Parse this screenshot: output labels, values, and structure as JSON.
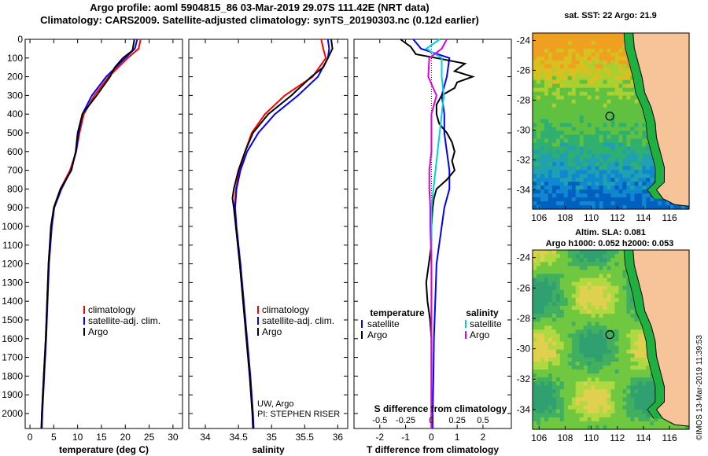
{
  "header": {
    "title_line1": "Argo profile: aoml 5904815_86 03-Mar-2019 29.07S 111.42E (NRT data)",
    "title_line2": "Climatology: CARS2009. Satellite-adjusted climatology: synTS_20190303.nc (0.12d earlier)"
  },
  "maps": {
    "sst_title": "sat. SST: 22 Argo: 21.9",
    "sla_title_1": "Altim. SLA: 0.081",
    "sla_title_2": "Argo h1000: 0.052 h2000: 0.053",
    "lon_ticks": [
      "106",
      "108",
      "110",
      "112",
      "114",
      "116"
    ],
    "lat_ticks": [
      "-24",
      "-26",
      "-28",
      "-30",
      "-32",
      "-34"
    ],
    "land_color": "#f7c499",
    "float_lon": 111.42,
    "float_lat": -29.07
  },
  "stamp": "©IMOS 13-Mar-2019 11:39:53",
  "chart_data": [
    {
      "type": "line",
      "xlabel": "temperature (deg C)",
      "ylabel": "",
      "xlim": [
        -1,
        32
      ],
      "ylim": [
        2080,
        0
      ],
      "x_ticks": [
        0,
        5,
        10,
        15,
        20,
        25,
        30
      ],
      "y_ticks": [
        0,
        100,
        200,
        300,
        400,
        500,
        600,
        700,
        800,
        900,
        1000,
        1100,
        1200,
        1300,
        1400,
        1500,
        1600,
        1700,
        1800,
        1900,
        2000
      ],
      "legend": [
        "climatology",
        "satellite-adj. clim.",
        "Argo"
      ],
      "series": [
        {
          "name": "climatology",
          "color": "#ff0000",
          "depth": [
            0,
            50,
            100,
            200,
            300,
            400,
            500,
            600,
            700,
            800,
            900,
            1000,
            1200,
            1400,
            1600,
            1800,
            2000,
            2080
          ],
          "values": [
            23.2,
            22.8,
            20.5,
            16.5,
            13.5,
            11.3,
            10.4,
            9.7,
            8.4,
            6.4,
            5.0,
            4.5,
            3.9,
            3.6,
            3.3,
            2.9,
            2.5,
            2.4
          ]
        },
        {
          "name": "satellite-adj. clim.",
          "color": "#0000ff",
          "depth": [
            0,
            50,
            100,
            200,
            300,
            400,
            500,
            600,
            700,
            800,
            900,
            1000,
            1200,
            1400,
            1600,
            1800,
            2000,
            2080
          ],
          "values": [
            22.5,
            22.0,
            20.0,
            16.0,
            13.0,
            11.0,
            10.2,
            9.7,
            8.6,
            6.6,
            5.1,
            4.6,
            4.0,
            3.7,
            3.4,
            3.0,
            2.6,
            2.5
          ]
        },
        {
          "name": "Argo",
          "color": "#000000",
          "depth": [
            0,
            60,
            100,
            150,
            200,
            300,
            400,
            500,
            600,
            700,
            800,
            900,
            1000,
            1200,
            1400,
            1600,
            1800,
            2000,
            2080
          ],
          "values": [
            21.9,
            21.5,
            19.5,
            17.8,
            16.8,
            14.0,
            11.0,
            10.0,
            9.6,
            8.7,
            6.4,
            5.0,
            4.4,
            3.9,
            3.6,
            3.3,
            2.9,
            2.5,
            2.4
          ]
        }
      ]
    },
    {
      "type": "line",
      "xlabel": "salinity",
      "ylabel": "",
      "xlim": [
        33.75,
        36.15
      ],
      "ylim": [
        2080,
        0
      ],
      "x_ticks": [
        34,
        34.5,
        35,
        35.5,
        36
      ],
      "legend": [
        "climatology",
        "satellite-adj. clim.",
        "Argo"
      ],
      "annotation_1": "UW, Argo",
      "annotation_2": "PI: STEPHEN RISER",
      "series": [
        {
          "name": "climatology",
          "color": "#ff0000",
          "depth": [
            0,
            50,
            100,
            200,
            300,
            400,
            500,
            600,
            700,
            800,
            900,
            1000,
            1200,
            1400,
            1600,
            1800,
            2000,
            2080
          ],
          "values": [
            35.75,
            35.78,
            35.82,
            35.62,
            35.2,
            34.9,
            34.7,
            34.6,
            34.52,
            34.46,
            34.44,
            34.46,
            34.52,
            34.57,
            34.62,
            34.67,
            34.71,
            34.72
          ]
        },
        {
          "name": "satellite-adj. clim.",
          "color": "#0000ff",
          "depth": [
            0,
            50,
            100,
            200,
            300,
            400,
            500,
            600,
            700,
            800,
            900,
            1000,
            1200,
            1400,
            1600,
            1800,
            2000,
            2080
          ],
          "values": [
            35.85,
            35.87,
            35.85,
            35.7,
            35.4,
            35.05,
            34.8,
            34.63,
            34.53,
            34.47,
            34.45,
            34.47,
            34.53,
            34.58,
            34.63,
            34.68,
            34.72,
            34.73
          ]
        },
        {
          "name": "Argo",
          "color": "#000000",
          "depth": [
            0,
            50,
            100,
            150,
            200,
            300,
            400,
            500,
            600,
            700,
            800,
            850,
            900,
            1000,
            1200,
            1400,
            1600,
            1800,
            2000,
            2080
          ],
          "values": [
            35.9,
            35.92,
            35.85,
            35.78,
            35.6,
            35.3,
            34.95,
            34.72,
            34.6,
            34.5,
            34.43,
            34.41,
            34.43,
            34.46,
            34.52,
            34.57,
            34.62,
            34.67,
            34.71,
            34.72
          ]
        }
      ]
    },
    {
      "type": "line",
      "xlabel": "T difference from climatology",
      "x2label": "S difference from climatology",
      "ylabel": "",
      "xlim": [
        -3,
        3.1
      ],
      "ylim": [
        2080,
        0
      ],
      "x_ticks": [
        -2,
        -1,
        0,
        1,
        2
      ],
      "x2_ticks": [
        "-0.5",
        "-0.25",
        "0",
        "0.25",
        "0.5"
      ],
      "legend_left_title": "temperature",
      "legend_right_title": "salinity",
      "legend_left": [
        "satellite",
        "Argo"
      ],
      "legend_right": [
        "satellite",
        "Argo"
      ],
      "series": [
        {
          "name": "satellite",
          "variable": "temperature",
          "color": "#0000ff",
          "depth": [
            0,
            50,
            100,
            200,
            300,
            400,
            500,
            600,
            700,
            800,
            900,
            1000,
            1100,
            1200,
            1400,
            1600,
            1800,
            2000,
            2080
          ],
          "values": [
            -0.7,
            -0.4,
            0.7,
            0.6,
            0.4,
            0.5,
            0.5,
            0.6,
            0.7,
            0.7,
            0.5,
            0.4,
            0.3,
            0.2,
            0.15,
            0.1,
            0.08,
            0.05,
            0.05
          ]
        },
        {
          "name": "Argo",
          "variable": "temperature",
          "color": "#000000",
          "depth": [
            0,
            40,
            80,
            100,
            130,
            170,
            200,
            230,
            260,
            300,
            350,
            400,
            450,
            500,
            550,
            600,
            650,
            700,
            750,
            800,
            850,
            900,
            1000,
            1100,
            1200,
            1300,
            1400,
            1500,
            1600,
            1800,
            2000,
            2080
          ],
          "values": [
            -1.2,
            -0.8,
            -0.6,
            0.2,
            1.3,
            0.9,
            1.6,
            1.0,
            0.9,
            0.4,
            0.2,
            0.2,
            0.3,
            0.6,
            0.8,
            0.9,
            0.8,
            0.9,
            0.6,
            0.2,
            0.1,
            0.05,
            0.0,
            0.0,
            -0.1,
            -0.2,
            -0.15,
            -0.05,
            0.0,
            0.0,
            0.0,
            0.0
          ]
        },
        {
          "name": "satellite",
          "variable": "salinity",
          "color": "#00d0e0",
          "depth": [
            0,
            50,
            100,
            200,
            300,
            400,
            500,
            600,
            700,
            800,
            900,
            1000,
            1200,
            1400,
            1600,
            1800,
            2000,
            2080
          ],
          "values": [
            0.08,
            -0.05,
            0.1,
            0.1,
            0.12,
            0.1,
            0.08,
            0.06,
            0.04,
            0.02,
            0.0,
            0.0,
            0.0,
            0.0,
            0.0,
            0.0,
            0.0,
            0.0
          ]
        },
        {
          "name": "Argo",
          "variable": "salinity",
          "color": "#e000e0",
          "depth": [
            0,
            50,
            100,
            200,
            300,
            400,
            500,
            600,
            700,
            800,
            900,
            1000,
            1200,
            1400,
            1600,
            1800,
            2000,
            2080
          ],
          "values": [
            0.15,
            0.1,
            -0.02,
            -0.03,
            0.05,
            0.0,
            0.0,
            0.0,
            -0.02,
            -0.02,
            -0.01,
            -0.01,
            0.0,
            0.0,
            0.0,
            0.0,
            0.0,
            0.0
          ]
        }
      ]
    }
  ]
}
